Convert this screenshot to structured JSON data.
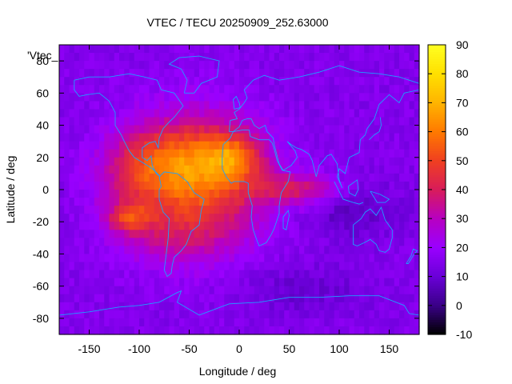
{
  "chart_data": {
    "type": "heatmap",
    "title": "VTEC / TECU 20250909_252.63000",
    "xlabel": "Longitude / deg",
    "ylabel": "Latitude / deg",
    "xlim": [
      -180,
      180
    ],
    "ylim": [
      -90,
      90
    ],
    "x_ticks": [
      -150,
      -100,
      -50,
      0,
      50,
      100,
      150
    ],
    "y_ticks": [
      -80,
      -60,
      -40,
      -20,
      0,
      20,
      40,
      60,
      80
    ],
    "colorbar": {
      "min": -10,
      "max": 90,
      "ticks": [
        -10,
        0,
        10,
        20,
        30,
        40,
        50,
        60,
        70,
        80,
        90
      ]
    },
    "legend_key": "'Vtec_",
    "background_vtec": 15,
    "blobs": [
      {
        "lon": -40,
        "lat": 5,
        "slon": 45,
        "slat": 28,
        "vtec": 38
      },
      {
        "lon": -70,
        "lat": 18,
        "slon": 35,
        "slat": 15,
        "vtec": 18
      },
      {
        "lon": -5,
        "lat": 20,
        "slon": 20,
        "slat": 10,
        "vtec": 25
      },
      {
        "lon": -110,
        "lat": -18,
        "slon": 15,
        "slat": 6,
        "vtec": 22
      },
      {
        "lon": -75,
        "lat": -30,
        "slon": 35,
        "slat": 12,
        "vtec": 8
      },
      {
        "lon": 60,
        "lat": 0,
        "slon": 30,
        "slat": 7,
        "vtec": 22
      },
      {
        "lon": 110,
        "lat": -12,
        "slon": 35,
        "slat": 12,
        "vtec": -8
      },
      {
        "lon": 60,
        "lat": -62,
        "slon": 45,
        "slat": 10,
        "vtec": -6
      },
      {
        "lon": -110,
        "lat": 5,
        "slon": 25,
        "slat": 20,
        "vtec": 12
      }
    ]
  },
  "colors": {
    "palette": [
      "#000000",
      "#3a0088",
      "#6a00d8",
      "#9a00ff",
      "#b800c0",
      "#d81c5a",
      "#f04020",
      "#ff7a00",
      "#ffb400",
      "#ffe000",
      "#ffff22"
    ],
    "coastline": "#1ea0ff"
  }
}
